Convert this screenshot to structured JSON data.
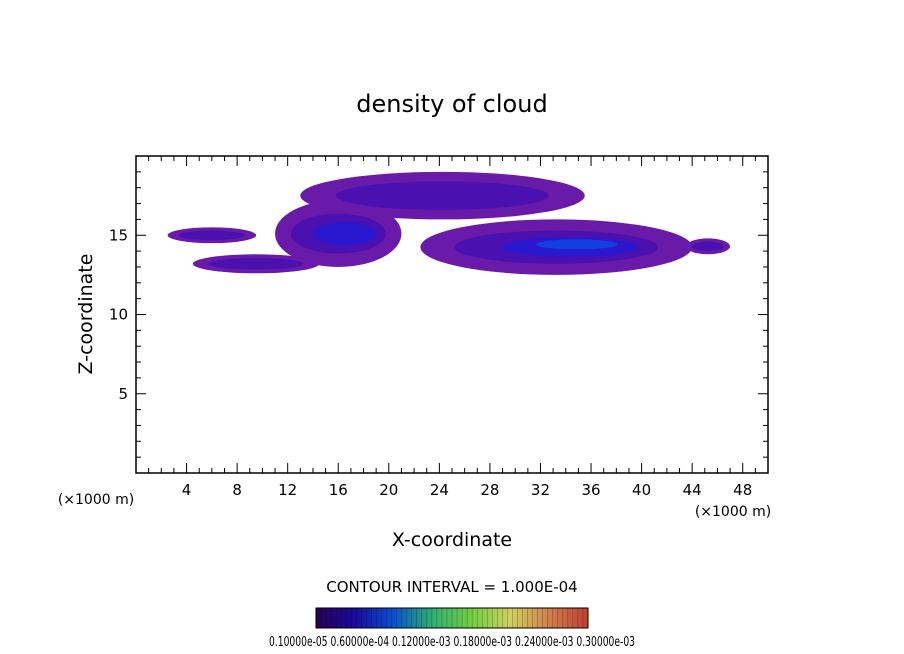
{
  "chart_data": {
    "type": "heatmap",
    "title": "density of cloud",
    "xlabel": "X-coordinate",
    "ylabel": "Z-coordinate",
    "x_unit": "(×1000 m)",
    "z_unit": "(×1000 m)",
    "xlim": [
      0,
      50
    ],
    "ylim": [
      0,
      20
    ],
    "x_ticks": [
      4,
      8,
      12,
      16,
      20,
      24,
      28,
      32,
      36,
      40,
      44,
      48
    ],
    "y_ticks": [
      5,
      10,
      15
    ],
    "x_tick_labels": [
      "4",
      "8",
      "12",
      "16",
      "20",
      "24",
      "28",
      "32",
      "36",
      "40",
      "44",
      "48"
    ],
    "y_tick_labels": [
      "5",
      "10",
      "15"
    ],
    "contour_interval_label": "CONTOUR INTERVAL = 1.000E-04",
    "colorbar_labels": "0.10000e-05 0.60000e-04 0.12000e-03 0.18000e-03 0.24000e-03 0.30000e-03",
    "colorbar_range": [
      1e-06,
      0.00035
    ],
    "colorscale": [
      "#2a0050",
      "#1a0aa0",
      "#0a50d0",
      "#30b070",
      "#70d040",
      "#d0d060",
      "#d08050",
      "#c04030"
    ],
    "cloud_regions": [
      {
        "x": [
          2.5,
          9.5
        ],
        "z": [
          14.5,
          15.5
        ],
        "level": 0.2
      },
      {
        "x": [
          4.5,
          14.5
        ],
        "z": [
          12.6,
          13.8
        ],
        "level": 0.3
      },
      {
        "x": [
          11,
          21
        ],
        "z": [
          13,
          17.2
        ],
        "level": 0.45
      },
      {
        "x": [
          13,
          35.5
        ],
        "z": [
          16,
          19
        ],
        "level": 0.3
      },
      {
        "x": [
          22.5,
          44
        ],
        "z": [
          12.5,
          16
        ],
        "level": 0.7
      },
      {
        "x": [
          43.5,
          47
        ],
        "z": [
          13.8,
          14.8
        ],
        "level": 0.2
      }
    ]
  }
}
